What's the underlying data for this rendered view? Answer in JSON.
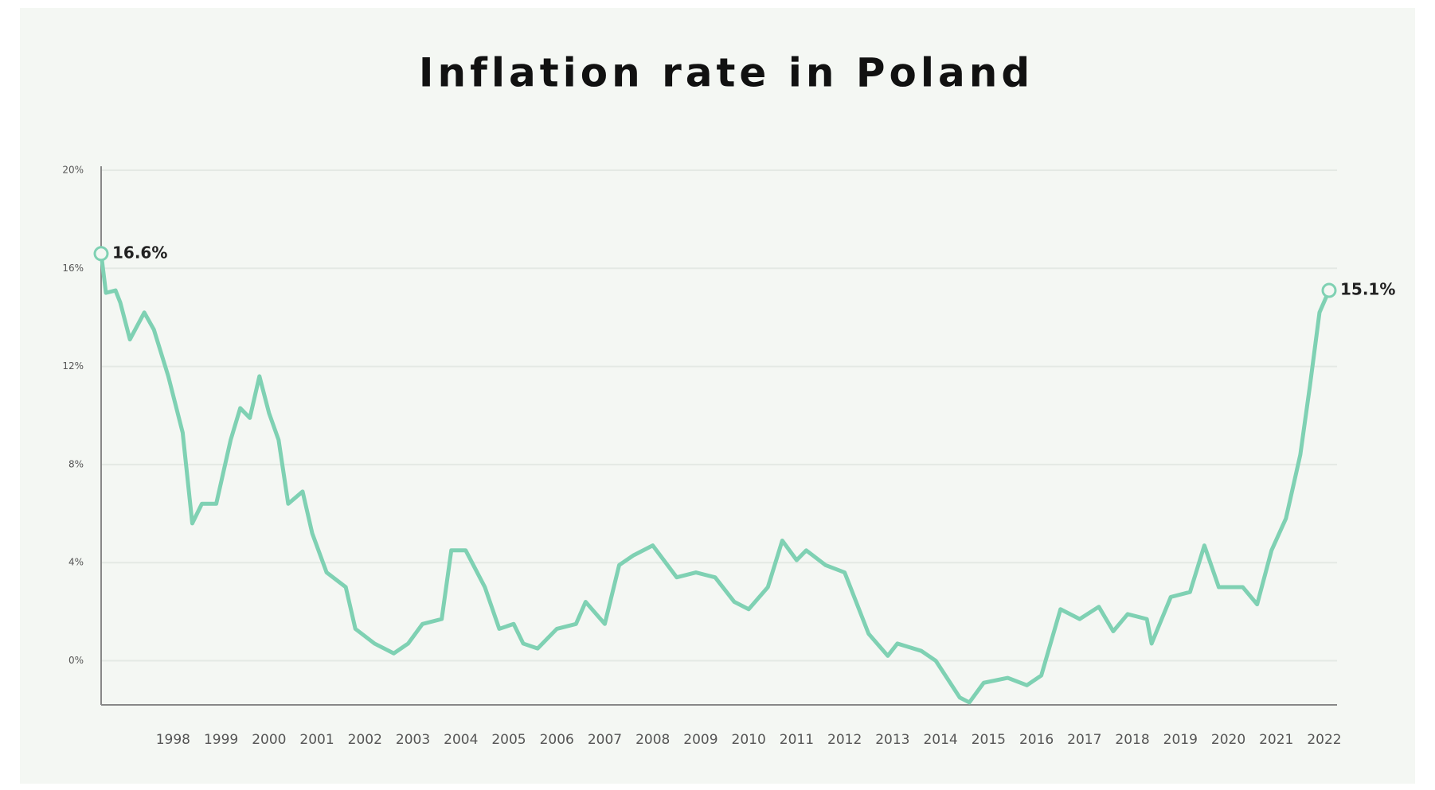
{
  "chart_data": {
    "type": "line",
    "title": "Inflation rate in Poland",
    "x": [
      1996.5,
      1996.6,
      1996.8,
      1996.9,
      1997.1,
      1997.4,
      1997.6,
      1997.9,
      1998.2,
      1998.4,
      1998.6,
      1998.9,
      1999.2,
      1999.4,
      1999.6,
      1999.8,
      2000.0,
      2000.2,
      2000.4,
      2000.7,
      2000.9,
      2001.2,
      2001.6,
      2001.8,
      2002.2,
      2002.6,
      2002.9,
      2003.2,
      2003.6,
      2003.8,
      2004.1,
      2004.5,
      2004.8,
      2005.1,
      2005.3,
      2005.6,
      2006.0,
      2006.4,
      2006.6,
      2007.0,
      2007.3,
      2007.6,
      2008.0,
      2008.5,
      2008.9,
      2009.3,
      2009.7,
      2010.0,
      2010.4,
      2010.7,
      2011.0,
      2011.2,
      2011.6,
      2012.0,
      2012.5,
      2012.9,
      2013.1,
      2013.6,
      2013.9,
      2014.4,
      2014.6,
      2014.9,
      2015.4,
      2015.8,
      2016.1,
      2016.5,
      2016.9,
      2017.3,
      2017.6,
      2017.9,
      2018.3,
      2018.4,
      2018.8,
      2019.2,
      2019.5,
      2019.8,
      2020.3,
      2020.6,
      2020.9,
      2021.2,
      2021.5,
      2021.7,
      2021.9,
      2022.1
    ],
    "values": [
      16.6,
      15.0,
      15.1,
      14.6,
      13.1,
      14.2,
      13.5,
      11.6,
      9.3,
      5.6,
      6.4,
      6.4,
      9.0,
      10.3,
      9.9,
      11.6,
      10.1,
      9.0,
      6.4,
      6.9,
      5.2,
      3.6,
      3.0,
      1.3,
      0.7,
      0.3,
      0.7,
      1.5,
      1.7,
      4.5,
      4.5,
      3.0,
      1.3,
      1.5,
      0.7,
      0.5,
      1.3,
      1.5,
      2.4,
      1.5,
      3.9,
      4.3,
      4.7,
      3.4,
      3.6,
      3.4,
      2.4,
      2.1,
      3.0,
      4.9,
      4.1,
      4.5,
      3.9,
      3.6,
      1.1,
      0.2,
      0.7,
      0.4,
      0.0,
      -1.5,
      -1.7,
      -0.9,
      -0.7,
      -1.0,
      -0.6,
      2.1,
      1.7,
      2.2,
      1.2,
      1.9,
      1.7,
      0.7,
      2.6,
      2.8,
      4.7,
      3.0,
      3.0,
      2.3,
      4.5,
      5.8,
      8.4,
      11.2,
      14.2,
      15.1
    ],
    "value_labels": {
      "0": "16.6%",
      "83": "15.1%"
    },
    "color": "#7fd1b3",
    "xlim": [
      1996.5,
      2022.1
    ],
    "xticks": [
      1998,
      1999,
      2000,
      2001,
      2002,
      2003,
      2004,
      2005,
      2006,
      2007,
      2008,
      2009,
      2010,
      2011,
      2012,
      2013,
      2014,
      2015,
      2016,
      2017,
      2018,
      2019,
      2020,
      2021,
      2022
    ],
    "ylim": [
      -1.8,
      20
    ],
    "yticks": [
      {
        "value": 0,
        "label": "0%"
      },
      {
        "value": 4,
        "label": "4%"
      },
      {
        "value": 8,
        "label": "8%"
      },
      {
        "value": 12,
        "label": "12%"
      },
      {
        "value": 16,
        "label": "16%"
      },
      {
        "value": 20,
        "label": "20%"
      }
    ],
    "grid": true
  }
}
